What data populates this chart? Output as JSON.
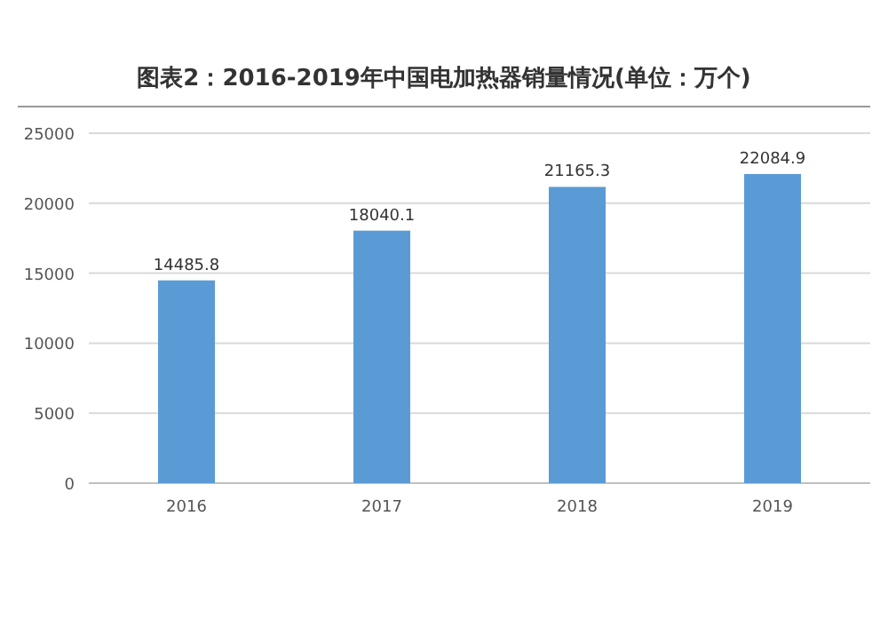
{
  "chart_data": {
    "type": "bar",
    "title": "图表2：2016-2019年中国电加热器销量情况(单位：万个)",
    "categories": [
      "2016",
      "2017",
      "2018",
      "2019"
    ],
    "values": [
      14485.8,
      18040.1,
      21165.3,
      22084.9
    ],
    "color": "#5b9bd5",
    "ylim": [
      0,
      25000
    ],
    "yticks": [
      0,
      5000,
      10000,
      15000,
      20000,
      25000
    ],
    "grid": "y",
    "data_labels": true
  }
}
